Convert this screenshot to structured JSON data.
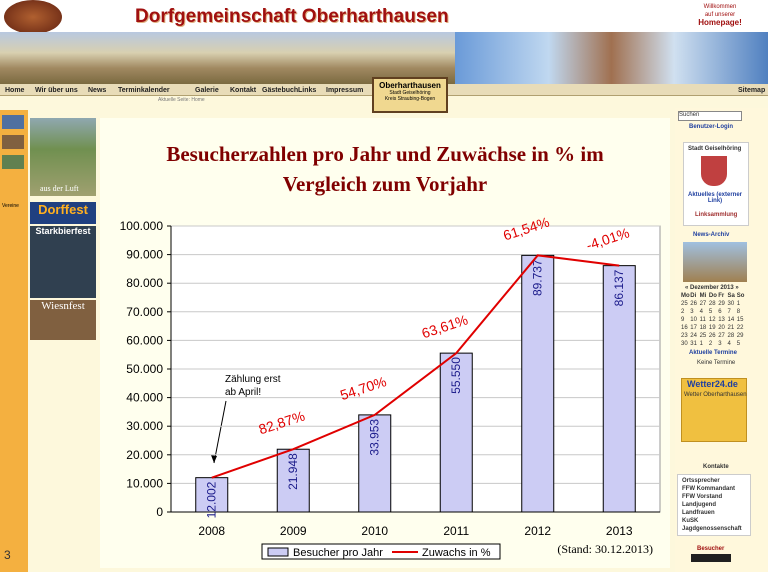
{
  "site": {
    "title": "Dorfgemeinschaft Oberharthausen",
    "welcome": [
      "Willkommen",
      "auf unserer",
      "Homepage!"
    ],
    "nav": [
      "Home",
      "Wir über uns",
      "News",
      "Terminkalender",
      "Galerie",
      "Kontakt",
      "Gästebuch",
      "Links",
      "Impressum"
    ],
    "sitemap": "Sitemap",
    "breadcrumb": "Aktuelle Seite: Home",
    "place_box": [
      "Oberharthausen",
      "Stadt Geiselhöring",
      "Kreis Straubing-Bogen"
    ],
    "left": {
      "aerial": "aus der Luft",
      "dorffest": "Dorffest",
      "starkbierfest": "Starkbierfest",
      "wiesnfest": "Wiesnfest",
      "vereine": "Vereine"
    },
    "right": {
      "search": "Suchen",
      "login": "Benutzer-Login",
      "city": "Stadt Geiselhöring",
      "news": "Aktuelles (externer Link)",
      "links": "Linksammlung",
      "archive": "News-Archiv",
      "month": "« Dezember 2013 »",
      "weekdays": [
        "Mo",
        "Di",
        "Mi",
        "Do",
        "Fr",
        "Sa",
        "So"
      ],
      "days": [
        "25",
        "26",
        "27",
        "28",
        "29",
        "30",
        "1",
        "2",
        "3",
        "4",
        "5",
        "6",
        "7",
        "8",
        "9",
        "10",
        "11",
        "12",
        "13",
        "14",
        "15",
        "16",
        "17",
        "18",
        "19",
        "20",
        "21",
        "22",
        "23",
        "24",
        "25",
        "26",
        "27",
        "28",
        "29",
        "30",
        "31",
        "1",
        "2",
        "3",
        "4",
        "5"
      ],
      "events": "Aktuelle Termine",
      "no_events": "Keine Termine",
      "weather_brand": "Wetter24.de",
      "weather_place": "Wetter Oberharthausen",
      "contacts": "Kontakte",
      "contact_list": [
        "Ortssprecher",
        "FFW Kommandant",
        "FFW Vorstand",
        "Landjugend",
        "Landfrauen",
        "KuSK",
        "Jagdgenossenschaft"
      ],
      "visitors": "Besucher"
    },
    "slide_number": "3"
  },
  "chart_data": {
    "type": "bar",
    "title": "Besucherzahlen pro Jahr und Zuwächse in % im Vergleich zum Vorjahr",
    "categories": [
      "2008",
      "2009",
      "2010",
      "2011",
      "2012",
      "2013"
    ],
    "series": [
      {
        "name": "Besucher pro Jahr",
        "type": "bar",
        "color": "#ccccf4",
        "values": [
          12002,
          21948,
          33953,
          55550,
          89737,
          86137
        ],
        "value_labels": [
          "12.002",
          "21.948",
          "33.953",
          "55.550",
          "89.737",
          "86.137"
        ]
      },
      {
        "name": "Zuwachs in %",
        "type": "line",
        "color": "#e00000",
        "values": [
          null,
          82.87,
          54.7,
          63.61,
          61.54,
          -4.01
        ],
        "value_labels": [
          null,
          "82,87%",
          "54,70%",
          "63,61%",
          "61,54%",
          "-4,01%"
        ]
      }
    ],
    "ylim": [
      0,
      100000
    ],
    "yticks": [
      0,
      {
        "value": 10000,
        "label": "10.000"
      },
      {
        "value": 20000,
        "label": "20.000"
      },
      {
        "value": 30000,
        "label": "30.000"
      },
      {
        "value": 40000,
        "label": "40.000"
      },
      {
        "value": 50000,
        "label": "50.000"
      },
      {
        "value": 60000,
        "label": "60.000"
      },
      {
        "value": 70000,
        "label": "70.000"
      },
      {
        "value": 80000,
        "label": "80.000"
      },
      {
        "value": 90000,
        "label": "90.000"
      },
      {
        "value": 100000,
        "label": "100.000"
      }
    ],
    "grid": true,
    "annotations": [
      "Zählung erst",
      "ab April!"
    ],
    "footnote": "(Stand: 30.12.2013)"
  }
}
